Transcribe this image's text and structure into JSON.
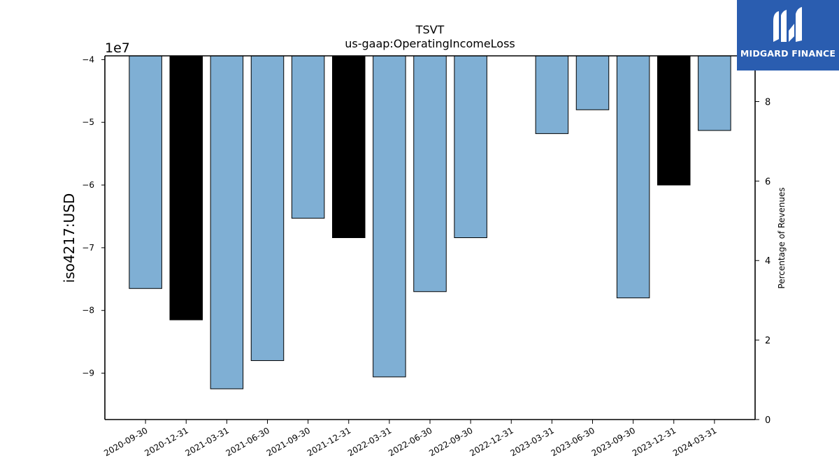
{
  "brand": {
    "name": "MIDGARD FINANCE",
    "logo_icon": "midgard-m-icon",
    "background_color": "#2a5db0"
  },
  "chart_data": {
    "type": "bar",
    "title": "TSVT",
    "subtitle": "us-gaap:OperatingIncomeLoss",
    "ylabel": "iso4217:USD",
    "y2label": "Percentage of Revenues",
    "offset_label": "1e7",
    "categories": [
      "2020-09-30",
      "2020-12-31",
      "2021-03-31",
      "2021-06-30",
      "2021-09-30",
      "2021-12-31",
      "2022-03-31",
      "2022-06-30",
      "2022-09-30",
      "2022-12-31",
      "2023-03-31",
      "2023-06-30",
      "2023-09-30",
      "2023-12-31",
      "2024-03-31"
    ],
    "values": [
      -76500000,
      -81500000,
      -92500000,
      -88000000,
      -65300000,
      -68400000,
      -90600000,
      -77000000,
      -68400000,
      null,
      -51800000,
      -48000000,
      -78000000,
      -60000000,
      -51300000
    ],
    "highlight": [
      false,
      true,
      false,
      false,
      false,
      true,
      false,
      false,
      false,
      false,
      false,
      false,
      false,
      true,
      false
    ],
    "colors": {
      "bar": "#7fafd4",
      "highlight": "#000000",
      "edge": "#000000"
    },
    "ylim": [
      -97400000,
      -39400000
    ],
    "yticks": [
      -4,
      -5,
      -6,
      -7,
      -8,
      -9
    ],
    "y2lim": [
      0,
      9.15
    ],
    "y2ticks": [
      0,
      2,
      4,
      6,
      8
    ],
    "grid": false,
    "legend": "none"
  }
}
